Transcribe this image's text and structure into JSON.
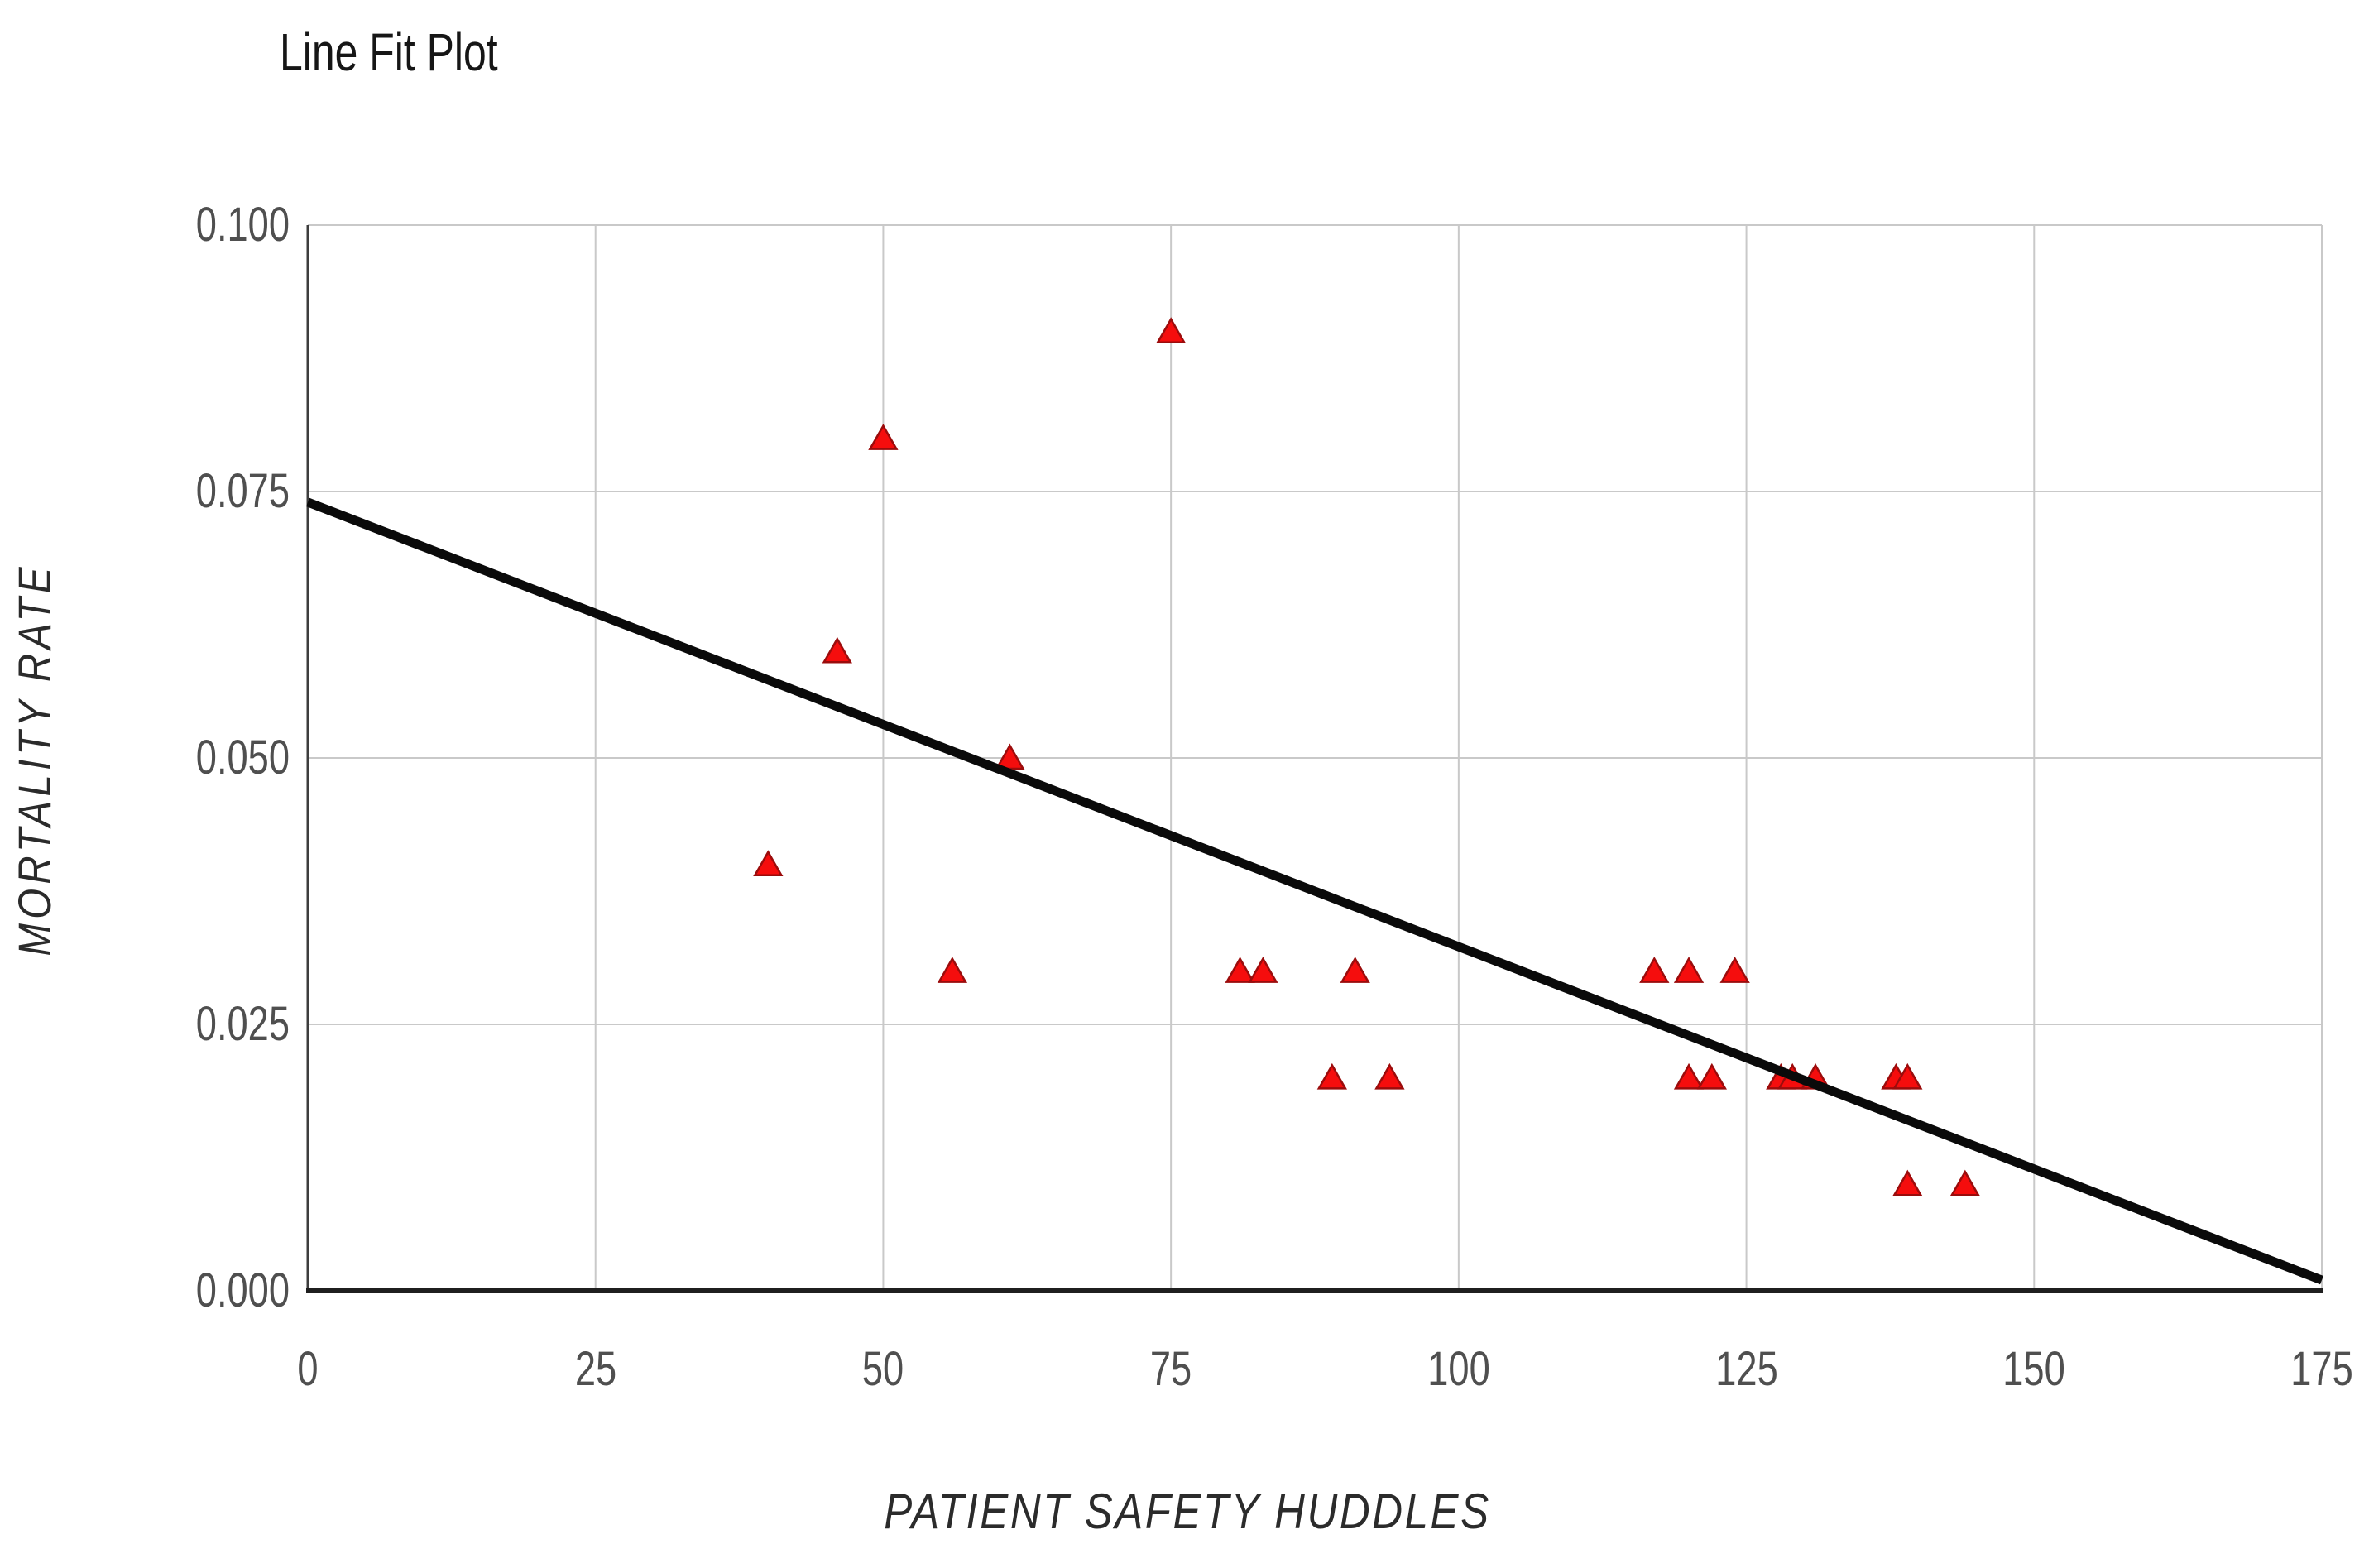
{
  "chart_title": "Line Fit Plot",
  "chart_data": {
    "type": "scatter",
    "title": "Line Fit Plot",
    "xlabel": "PATIENT SAFETY HUDDLES",
    "ylabel": "MORTALITY RATE",
    "xlim": [
      0,
      175
    ],
    "ylim": [
      0.0,
      0.1
    ],
    "x_ticks": [
      0,
      25,
      50,
      75,
      100,
      125,
      150,
      175
    ],
    "y_ticks": [
      0.0,
      0.025,
      0.05,
      0.075,
      0.1
    ],
    "y_tick_labels": [
      "0.000",
      "0.025",
      "0.050",
      "0.075",
      "0.100"
    ],
    "grid": true,
    "legend": "none",
    "series": [
      {
        "name": "mortality-rate-points",
        "type": "scatter",
        "marker": "triangle-up",
        "points": [
          [
            40,
            0.04
          ],
          [
            46,
            0.06
          ],
          [
            50,
            0.08
          ],
          [
            56,
            0.03
          ],
          [
            61,
            0.05
          ],
          [
            75,
            0.09
          ],
          [
            81,
            0.03
          ],
          [
            83,
            0.03
          ],
          [
            89,
            0.02
          ],
          [
            91,
            0.03
          ],
          [
            94,
            0.02
          ],
          [
            117,
            0.03
          ],
          [
            120,
            0.03
          ],
          [
            124,
            0.03
          ],
          [
            120,
            0.02
          ],
          [
            122,
            0.02
          ],
          [
            128,
            0.02
          ],
          [
            129,
            0.02
          ],
          [
            131,
            0.02
          ],
          [
            138,
            0.02
          ],
          [
            139,
            0.02
          ],
          [
            139,
            0.01
          ],
          [
            144,
            0.01
          ]
        ]
      },
      {
        "name": "linear-fit-trend",
        "type": "line",
        "points": [
          [
            0,
            0.074
          ],
          [
            175,
            0.001
          ]
        ]
      }
    ]
  },
  "colors": {
    "marker_fill": "#f50d0d",
    "marker_stroke": "#9b0c0c",
    "trend_line": "#0a0a0a",
    "gridline": "#c9c9c9",
    "x_axis_line": "#1f1f1f",
    "y_axis_line": "#3d3d3d",
    "tick_text": "#4f4f4f",
    "title_text": "#161616",
    "axis_title_text": "#2b2b2b"
  }
}
